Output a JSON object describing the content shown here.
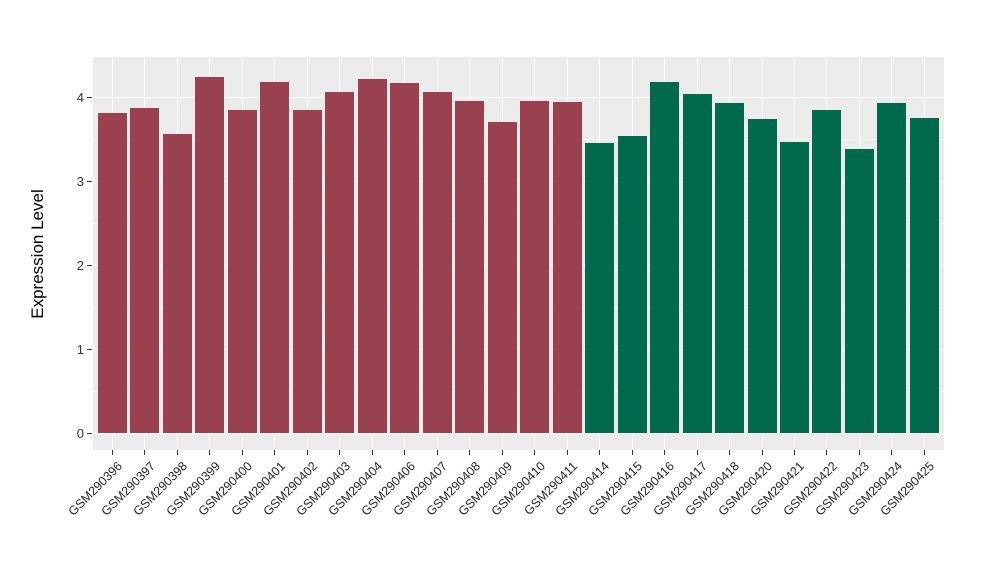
{
  "chart_data": {
    "type": "bar",
    "title": "",
    "xlabel": "",
    "ylabel": "Expression Level",
    "ylim": [
      0,
      4.48
    ],
    "yticks": [
      0,
      1,
      2,
      3,
      4
    ],
    "yticks_minor": [
      0.5,
      1.5,
      2.5,
      3.5
    ],
    "grid": "on",
    "legend": "none",
    "categories": [
      "GSM290396",
      "GSM290397",
      "GSM290398",
      "GSM290399",
      "GSM290400",
      "GSM290401",
      "GSM290402",
      "GSM290403",
      "GSM290404",
      "GSM290406",
      "GSM290407",
      "GSM290408",
      "GSM290409",
      "GSM290410",
      "GSM290411",
      "GSM290414",
      "GSM290415",
      "GSM290416",
      "GSM290417",
      "GSM290418",
      "GSM290420",
      "GSM290421",
      "GSM290422",
      "GSM290423",
      "GSM290424",
      "GSM290425"
    ],
    "values": [
      3.81,
      3.87,
      3.56,
      4.24,
      3.85,
      4.18,
      3.84,
      4.06,
      4.21,
      4.17,
      4.06,
      3.95,
      3.7,
      3.95,
      3.94,
      3.45,
      3.54,
      4.18,
      4.04,
      3.93,
      3.74,
      3.46,
      3.84,
      3.38,
      3.93,
      3.75
    ],
    "bar_colors": [
      "#9A4150",
      "#9A4150",
      "#9A4150",
      "#9A4150",
      "#9A4150",
      "#9A4150",
      "#9A4150",
      "#9A4150",
      "#9A4150",
      "#9A4150",
      "#9A4150",
      "#9A4150",
      "#9A4150",
      "#9A4150",
      "#9A4150",
      "#016A4C",
      "#016A4C",
      "#016A4C",
      "#016A4C",
      "#016A4C",
      "#016A4C",
      "#016A4C",
      "#016A4C",
      "#016A4C",
      "#016A4C",
      "#016A4C"
    ],
    "group_colors": {
      "group_1": "#9A4150",
      "group_2": "#016A4C"
    },
    "panel_background": "#EBEBEB",
    "grid_color": "#FFFFFF",
    "axis_text_color": "#262626"
  }
}
